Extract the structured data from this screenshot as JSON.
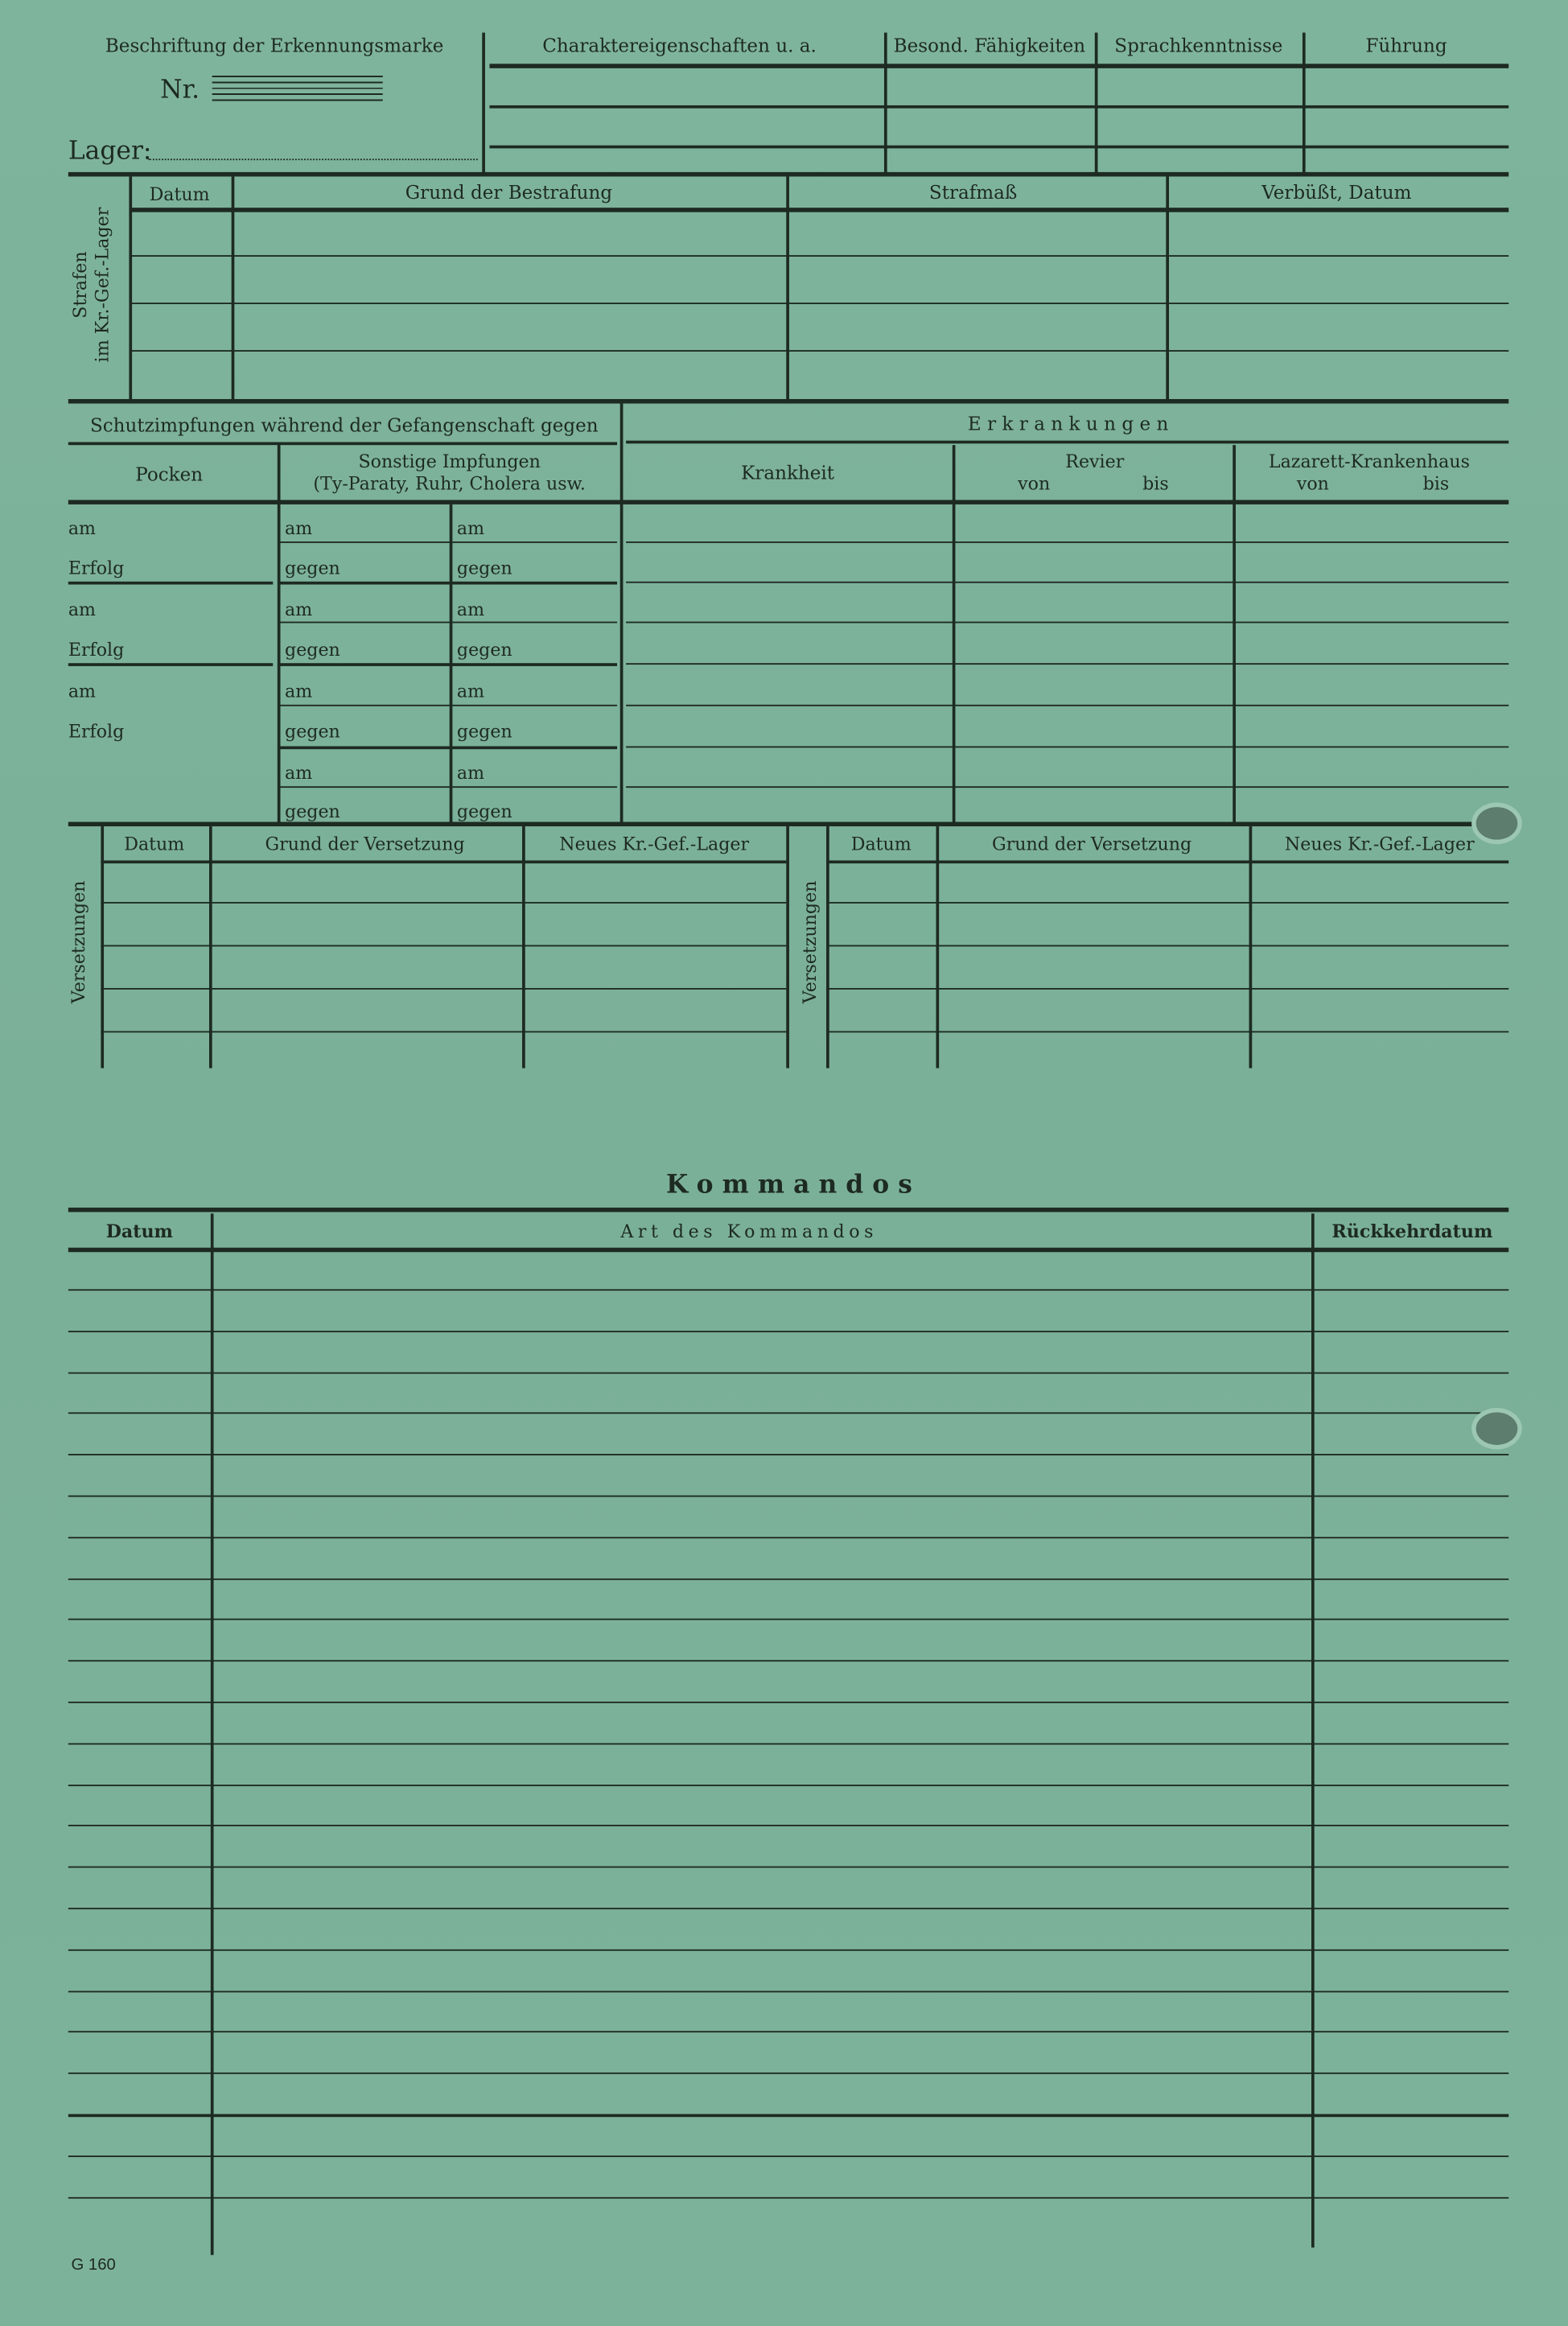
{
  "header": {
    "marke_label": "Beschriftung der Erkennungsmarke",
    "nr_label": "Nr.",
    "lager_label": "Lager:",
    "columns": [
      "Charaktereigenschaften u. a.",
      "Besond. Fähigkeiten",
      "Sprachkenntnisse",
      "Führung"
    ]
  },
  "strafen": {
    "side_label_1": "Strafen",
    "side_label_2": "im Kr.-Gef.-Lager",
    "columns": [
      "Datum",
      "Grund der Bestrafung",
      "Strafmaß",
      "Verbüßt, Datum"
    ]
  },
  "impfungen": {
    "title": "Schutzimpfungen während der Gefangenschaft gegen",
    "pocken": "Pocken",
    "sonstige_1": "Sonstige Impfungen",
    "sonstige_2": "(Ty-Paraty, Ruhr, Cholera usw.",
    "pocken_rows": [
      "am",
      "Erfolg",
      "am",
      "Erfolg",
      "am",
      "Erfolg"
    ],
    "sonstige_rows": [
      "am",
      "gegen",
      "am",
      "gegen",
      "am",
      "gegen",
      "am",
      "gegen"
    ]
  },
  "erkrankungen": {
    "title": "Erkrankungen",
    "krankheit": "Krankheit",
    "revier": "Revier",
    "lazarett": "Lazarett-Krankenhaus",
    "von": "von",
    "bis": "bis"
  },
  "versetzungen": {
    "side_label": "Versetzungen",
    "columns": [
      "Datum",
      "Grund der Versetzung",
      "Neues Kr.-Gef.-Lager"
    ]
  },
  "kommandos": {
    "title": "Kommandos",
    "columns": [
      "Datum",
      "Art des Kommandos",
      "Rückkehrdatum"
    ]
  },
  "form_number": "G 160",
  "colors": {
    "paper": "#7cb199",
    "ink": "#1d2a22"
  }
}
